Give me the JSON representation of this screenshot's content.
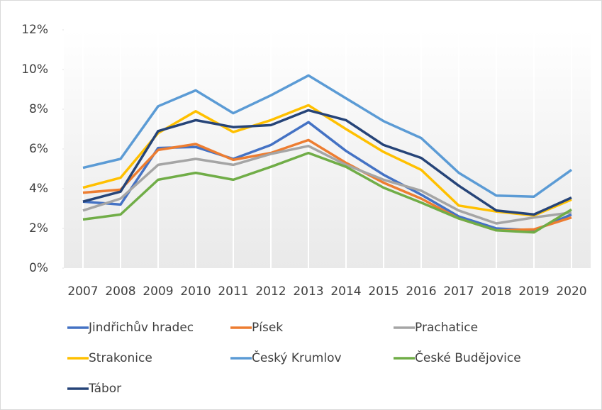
{
  "chart_data": {
    "type": "line",
    "legend": "bottom",
    "categories": [
      "2007",
      "2008",
      "2009",
      "2010",
      "2011",
      "2012",
      "2013",
      "2014",
      "2015",
      "2016",
      "2017",
      "2018",
      "2019",
      "2020"
    ],
    "ylim": [
      0,
      12
    ],
    "yticks": [
      {
        "value": 0,
        "label": "0%"
      },
      {
        "value": 2,
        "label": "2%"
      },
      {
        "value": 4,
        "label": "4%"
      },
      {
        "value": 6,
        "label": "6%"
      },
      {
        "value": 8,
        "label": "8%"
      },
      {
        "value": 10,
        "label": "10%"
      },
      {
        "value": 12,
        "label": "12%"
      }
    ],
    "series": [
      {
        "name": "Jindřichův hradec",
        "color": "#4472c4",
        "values": [
          3.35,
          3.2,
          6.05,
          6.1,
          5.5,
          6.2,
          7.35,
          5.9,
          4.7,
          3.7,
          2.6,
          2.0,
          1.9,
          2.7
        ]
      },
      {
        "name": "Písek",
        "color": "#ed7d31",
        "values": [
          3.8,
          3.95,
          5.95,
          6.25,
          5.45,
          5.8,
          6.45,
          5.3,
          4.3,
          3.5,
          2.5,
          1.9,
          1.95,
          2.55
        ]
      },
      {
        "name": "Prachatice",
        "color": "#a5a5a5",
        "values": [
          2.9,
          3.5,
          5.2,
          5.5,
          5.2,
          5.75,
          6.15,
          5.2,
          4.45,
          3.9,
          2.9,
          2.25,
          2.55,
          2.8
        ]
      },
      {
        "name": "Strakonice",
        "color": "#ffc000",
        "values": [
          4.05,
          4.55,
          6.8,
          7.9,
          6.85,
          7.45,
          8.2,
          7.0,
          5.85,
          4.95,
          3.15,
          2.85,
          2.65,
          3.45
        ]
      },
      {
        "name": "Český Krumlov",
        "color": "#5b9bd5",
        "values": [
          5.05,
          5.5,
          8.15,
          8.95,
          7.8,
          8.7,
          9.7,
          8.55,
          7.4,
          6.55,
          4.8,
          3.65,
          3.6,
          4.95
        ]
      },
      {
        "name": "České Budějovice",
        "color": "#70ad47",
        "values": [
          2.45,
          2.7,
          4.45,
          4.8,
          4.45,
          5.1,
          5.8,
          5.1,
          4.05,
          3.3,
          2.5,
          1.9,
          1.8,
          2.95
        ]
      },
      {
        "name": "Tábor",
        "color": "#264478",
        "values": [
          3.35,
          3.85,
          6.9,
          7.45,
          7.1,
          7.2,
          7.95,
          7.45,
          6.2,
          5.55,
          4.15,
          2.9,
          2.7,
          3.55
        ]
      }
    ]
  }
}
